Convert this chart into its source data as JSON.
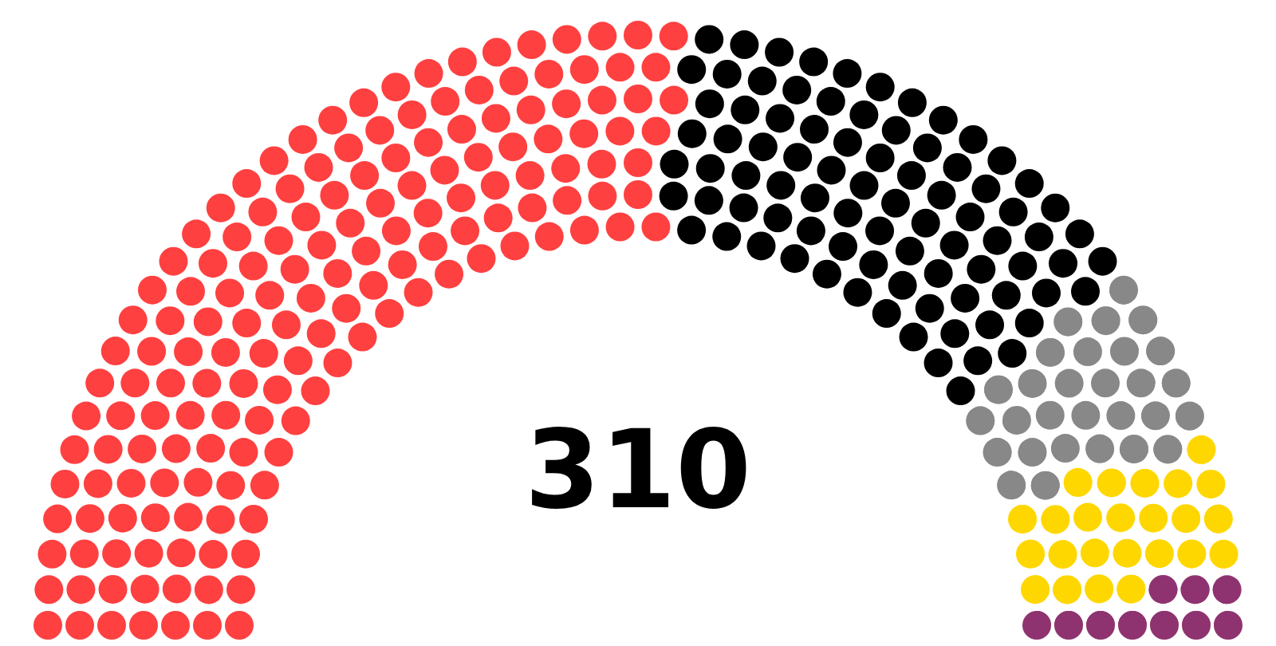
{
  "chart_data": {
    "type": "donut",
    "title": "310",
    "categories": [
      null,
      null,
      null,
      null,
      null
    ],
    "values": [
      52.26,
      28.06,
      9.68,
      7.74,
      2.26
    ],
    "colors": [
      "#ff4040",
      "#000000",
      "#888888",
      "#ffd700",
      "#8e3370"
    ]
  }
}
